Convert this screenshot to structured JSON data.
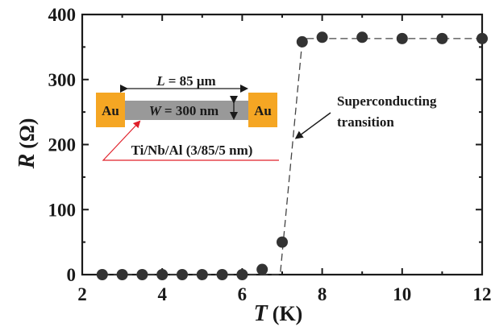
{
  "chart_data": {
    "type": "scatter",
    "xlabel": {
      "var": "T",
      "unit": "(K)"
    },
    "ylabel": {
      "var": "R",
      "unit": "(Ω)"
    },
    "xlim": [
      2,
      12
    ],
    "ylim": [
      0,
      400
    ],
    "xticks": [
      2,
      4,
      6,
      8,
      10,
      12
    ],
    "yticks": [
      0,
      100,
      200,
      300,
      400
    ],
    "grid": false,
    "series": [
      {
        "marker_color": "#333333",
        "points": [
          {
            "x": 2.5,
            "y": 0
          },
          {
            "x": 3.0,
            "y": 0
          },
          {
            "x": 3.5,
            "y": 0
          },
          {
            "x": 4.0,
            "y": 0
          },
          {
            "x": 4.5,
            "y": 0
          },
          {
            "x": 5.0,
            "y": 0
          },
          {
            "x": 5.5,
            "y": 0
          },
          {
            "x": 6.0,
            "y": 0
          },
          {
            "x": 6.5,
            "y": 8
          },
          {
            "x": 7.0,
            "y": 50
          },
          {
            "x": 7.5,
            "y": 358
          },
          {
            "x": 8.0,
            "y": 365
          },
          {
            "x": 9.0,
            "y": 365
          },
          {
            "x": 10.0,
            "y": 363
          },
          {
            "x": 11.0,
            "y": 363
          },
          {
            "x": 12.0,
            "y": 363
          }
        ]
      }
    ],
    "guide_line": {
      "style": "dashed",
      "points": [
        {
          "x": 2.5,
          "y": 0
        },
        {
          "x": 6.95,
          "y": 0
        },
        {
          "x": 7.5,
          "y": 358
        },
        {
          "x": 7.6,
          "y": 363
        },
        {
          "x": 12.0,
          "y": 363
        }
      ]
    },
    "annotation": {
      "line1": "Superconducting",
      "line2": "transition",
      "target": {
        "x": 7.35,
        "y": 210
      }
    },
    "inset": {
      "left_pad": "Au",
      "right_pad": "Au",
      "length_var": "L",
      "length_value": "= 85 μm",
      "width_var": "W",
      "width_value": "= 300 nm",
      "material": "Ti/Nb/Al (3/85/5 nm)",
      "pad_color": "#f5a623",
      "wire_color": "#999999",
      "pointer_color": "#e0202a"
    },
    "colors": {
      "axis": "#1a1a1a",
      "marker": "#333333",
      "line": "#444444"
    }
  }
}
